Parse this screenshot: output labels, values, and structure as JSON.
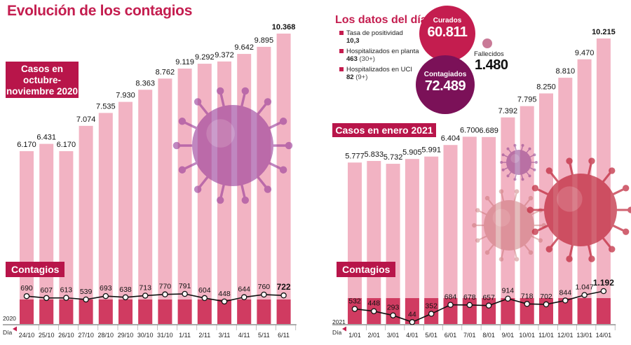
{
  "title": "Evolución de los contagios",
  "colors": {
    "accent": "#c41d4f",
    "bar_case": "#f2b3c3",
    "bar_contagio": "#cc2d56",
    "curados": "#c41d4f",
    "contagiados": "#7b1158"
  },
  "panel_oct": {
    "box_label": "Casos en octubre-noviembre 2020",
    "contagios_label": "Contagios",
    "year": "2020",
    "dia_label": "Día"
  },
  "panel_jan": {
    "box_label": "Casos en enero 2021",
    "contagios_label": "Contagios",
    "year": "2021",
    "dia_label": "Día"
  },
  "today": {
    "title": "Los datos del día",
    "rows": [
      {
        "label": "Tasa de positividad",
        "value": "10,3",
        "sub": ""
      },
      {
        "label": "Hospitalizados en planta",
        "value": "463",
        "sub": "(30+)"
      },
      {
        "label": "Hospitalizados en UCI",
        "value": "82",
        "sub": "(9+)"
      }
    ],
    "curados_label": "Curados",
    "curados_value": "60.811",
    "contagiados_label": "Contagiados",
    "contagiados_value": "72.489",
    "fallecidos_label": "Fallecidos",
    "fallecidos_value": "1.480"
  },
  "chart_data": [
    {
      "type": "bar",
      "title": "Casos en octubre-noviembre 2020",
      "categories": [
        "24/10",
        "25/10",
        "26/10",
        "27/10",
        "28/10",
        "29/10",
        "30/10",
        "31/10",
        "1/11",
        "2/11",
        "3/11",
        "4/11",
        "5/11",
        "6/11"
      ],
      "series": [
        {
          "name": "Casos",
          "values": [
            6170,
            6431,
            6170,
            7074,
            7535,
            7930,
            8363,
            8762,
            9119,
            9292,
            9372,
            9642,
            9895,
            10368
          ],
          "labels": [
            "6.170",
            "6.431",
            "6.170",
            "7.074",
            "7.535",
            "7.930",
            "8.363",
            "8.762",
            "9.119",
            "9.292",
            "9.372",
            "9.642",
            "9.895",
            "10.368"
          ]
        },
        {
          "name": "Contagios",
          "type": "line",
          "values": [
            690,
            607,
            613,
            539,
            693,
            638,
            713,
            770,
            791,
            604,
            448,
            644,
            760,
            722
          ],
          "labels": [
            "690",
            "607",
            "613",
            "539",
            "693",
            "638",
            "713",
            "770",
            "791",
            "604",
            "448",
            "644",
            "760",
            "722"
          ]
        }
      ],
      "ylim": [
        0,
        10368
      ]
    },
    {
      "type": "bar",
      "title": "Casos en enero 2021",
      "categories": [
        "1/01",
        "2/01",
        "3/01",
        "4/01",
        "5/01",
        "6/01",
        "7/01",
        "8/01",
        "9/01",
        "10/01",
        "11/01",
        "12/01",
        "13/01",
        "14/01"
      ],
      "series": [
        {
          "name": "Casos",
          "values": [
            5777,
            5833,
            5732,
            5905,
            5991,
            6404,
            6700,
            6689,
            7392,
            7795,
            8250,
            8810,
            9470,
            10215
          ],
          "labels": [
            "5.777",
            "5.833",
            "5.732",
            "5.905",
            "5.991",
            "6.404",
            "6.700",
            "6.689",
            "7.392",
            "7.795",
            "8.250",
            "8.810",
            "9.470",
            "10.215"
          ]
        },
        {
          "name": "Contagios",
          "type": "line",
          "values": [
            532,
            448,
            293,
            44,
            352,
            684,
            678,
            657,
            914,
            718,
            702,
            844,
            1047,
            1192
          ],
          "labels": [
            "532",
            "448",
            "293",
            "44",
            "352",
            "684",
            "678",
            "657",
            "914",
            "718",
            "702",
            "844",
            "1.047",
            "1.192"
          ]
        }
      ],
      "ylim": [
        0,
        10215
      ]
    }
  ]
}
